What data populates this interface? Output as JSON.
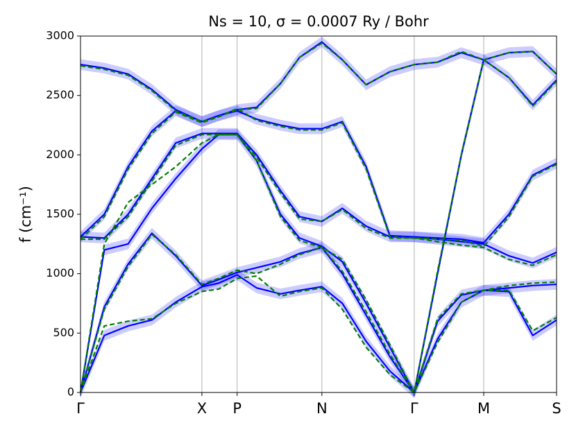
{
  "chart_data": {
    "type": "line",
    "title": "Ns = 10, σ = 0.0007 Ry / Bohr",
    "y_label": "f (cm⁻¹)",
    "x": [
      0,
      0.05,
      0.1,
      0.15,
      0.2,
      0.255,
      0.29,
      0.329,
      0.37,
      0.42,
      0.46,
      0.507,
      0.55,
      0.6,
      0.65,
      0.701,
      0.75,
      0.8,
      0.847,
      0.9,
      0.95,
      1.0
    ],
    "xlim": [
      0,
      1.0
    ],
    "xticks": [
      {
        "value": 0,
        "label": "Γ"
      },
      {
        "value": 0.255,
        "label": "X"
      },
      {
        "value": 0.329,
        "label": "P"
      },
      {
        "value": 0.507,
        "label": "N"
      },
      {
        "value": 0.701,
        "label": "Γ"
      },
      {
        "value": 0.847,
        "label": "M"
      },
      {
        "value": 1.0,
        "label": "S"
      }
    ],
    "ylim": [
      0,
      3000
    ],
    "yticks": [
      0,
      500,
      1000,
      1500,
      2000,
      2500,
      3000
    ],
    "x_grid": true,
    "series": [
      {
        "color": "#0000ff",
        "dashed": false,
        "error": 45,
        "values": [
          0,
          480,
          560,
          610,
          760,
          890,
          920,
          990,
          880,
          830,
          860,
          890,
          750,
          430,
          180,
          0,
          450,
          760,
          860,
          850,
          480,
          610
        ]
      },
      {
        "color": "#0000ff",
        "dashed": false,
        "error": 45,
        "values": [
          0,
          720,
          1080,
          1340,
          1150,
          900,
          950,
          1010,
          1050,
          1100,
          1170,
          1220,
          1000,
          650,
          300,
          0,
          600,
          820,
          860,
          880,
          900,
          910
        ]
      },
      {
        "color": "#0000ff",
        "dashed": false,
        "error": 45,
        "values": [
          0,
          1200,
          1250,
          1550,
          1800,
          2050,
          2170,
          2170,
          1950,
          1500,
          1300,
          1230,
          1100,
          750,
          380,
          0,
          1000,
          2000,
          2800,
          2650,
          2420,
          2630
        ]
      },
      {
        "color": "#0000ff",
        "dashed": false,
        "error": 45,
        "values": [
          1310,
          1300,
          1500,
          1800,
          2100,
          2180,
          2180,
          2180,
          2000,
          1700,
          1480,
          1440,
          1550,
          1400,
          1310,
          1310,
          1290,
          1270,
          1250,
          1150,
          1090,
          1180
        ]
      },
      {
        "color": "#0000ff",
        "dashed": false,
        "error": 45,
        "values": [
          1310,
          1500,
          1900,
          2200,
          2370,
          2280,
          2330,
          2370,
          2300,
          2250,
          2220,
          2220,
          2280,
          1900,
          1320,
          1310,
          1300,
          1290,
          1260,
          1500,
          1830,
          1930
        ]
      },
      {
        "color": "#0000ff",
        "dashed": false,
        "error": 45,
        "values": [
          2760,
          2730,
          2680,
          2550,
          2380,
          2280,
          2330,
          2380,
          2400,
          2600,
          2820,
          2950,
          2800,
          2590,
          2700,
          2760,
          2780,
          2860,
          2800,
          2860,
          2870,
          2680
        ]
      },
      {
        "color": "#008000",
        "dashed": true,
        "values": [
          0,
          560,
          600,
          620,
          750,
          850,
          870,
          960,
          980,
          810,
          850,
          880,
          700,
          380,
          150,
          0,
          420,
          760,
          860,
          860,
          520,
          630
        ]
      },
      {
        "color": "#008000",
        "dashed": true,
        "values": [
          0,
          700,
          1060,
          1330,
          1160,
          910,
          960,
          1030,
          1000,
          1080,
          1160,
          1220,
          1020,
          680,
          320,
          0,
          620,
          830,
          860,
          900,
          920,
          930
        ]
      },
      {
        "color": "#008000",
        "dashed": true,
        "values": [
          0,
          1250,
          1600,
          1750,
          1900,
          2100,
          2170,
          2170,
          1950,
          1480,
          1280,
          1220,
          1120,
          780,
          400,
          0,
          1020,
          2000,
          2800,
          2650,
          2410,
          2620
        ]
      },
      {
        "color": "#008000",
        "dashed": true,
        "values": [
          1290,
          1290,
          1480,
          1780,
          2080,
          2170,
          2170,
          2170,
          1980,
          1680,
          1460,
          1440,
          1540,
          1380,
          1300,
          1300,
          1270,
          1240,
          1220,
          1120,
          1070,
          1160
        ]
      },
      {
        "color": "#008000",
        "dashed": true,
        "values": [
          1290,
          1480,
          1880,
          2180,
          2360,
          2270,
          2320,
          2390,
          2290,
          2240,
          2210,
          2210,
          2270,
          1880,
          1310,
          1300,
          1290,
          1280,
          1230,
          1480,
          1820,
          1920
        ]
      },
      {
        "color": "#008000",
        "dashed": true,
        "values": [
          2750,
          2720,
          2670,
          2540,
          2370,
          2280,
          2320,
          2380,
          2390,
          2600,
          2820,
          2940,
          2800,
          2590,
          2700,
          2760,
          2780,
          2870,
          2800,
          2860,
          2870,
          2680
        ]
      }
    ]
  }
}
